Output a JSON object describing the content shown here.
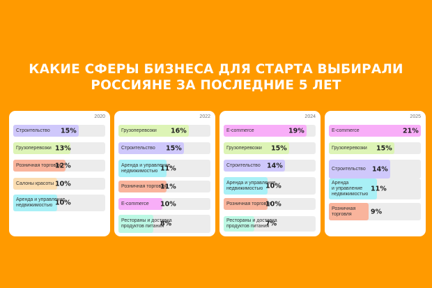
{
  "title": {
    "line1": "КАКИЕ СФЕРЫ БИЗНЕСА ДЛЯ СТАРТА ВЫБИРАЛИ",
    "line2": "РОССИЯНЕ ЗА ПОСЛЕДНИЕ 5 ЛЕТ"
  },
  "colors": {
    "background": "#FF9A00",
    "Строительство": "#CFC8FB",
    "Грузоперевозки": "#DDF4B6",
    "Розничная торговля": "#F9B49C",
    "Салоны красоты": "#FBDDB1",
    "Аренда и управление недвижимостью": "#A9F0F6",
    "E-commerce": "#F8AEF8",
    "Рестораны и доставка продуктов питания": "#BDF8E4"
  },
  "chart_data": [
    {
      "type": "bar",
      "year": "2020",
      "categories": [
        "Строительство",
        "Грузоперевозки",
        "Розничная торговля",
        "Салоны красоты",
        "Аренда и управление\nнедвижимостью"
      ],
      "labels": [
        "15%",
        "13%",
        "12%",
        "10%",
        "10%"
      ],
      "values": [
        15,
        13,
        12,
        10,
        10
      ]
    },
    {
      "type": "bar",
      "year": "2022",
      "categories": [
        "Грузоперевозки",
        "Строительство",
        "Аренда и управление\nнедвижимостью",
        "Розничная торговля",
        "E-commerce",
        "Рестораны и доставка\nпродуктов питания"
      ],
      "labels": [
        "16%",
        "15%",
        "11%",
        "11%",
        "10%",
        "8%"
      ],
      "values": [
        16,
        15,
        11,
        11,
        10,
        8
      ]
    },
    {
      "type": "bar",
      "year": "2024",
      "categories": [
        "E-commerce",
        "Грузоперевозки",
        "Строительство",
        "Аренда и управление\nнедвижимостью",
        "Розничная торговля",
        "Рестораны и доставка\nпродуктов питания"
      ],
      "labels": [
        "19%",
        "15%",
        "14%",
        "10%",
        "10%",
        "7%"
      ],
      "values": [
        19,
        15,
        14,
        10,
        10,
        7
      ]
    },
    {
      "type": "bar",
      "year": "2025",
      "categories": [
        "E-commerce",
        "Грузоперевозки",
        "Строительство",
        "Аренда\nи управление\nнедвижимостью",
        "Розничная\nторговля"
      ],
      "labels": [
        "21%",
        "15%",
        "14%",
        "11%",
        "9%"
      ],
      "values": [
        21,
        15,
        14,
        11,
        9
      ]
    }
  ]
}
